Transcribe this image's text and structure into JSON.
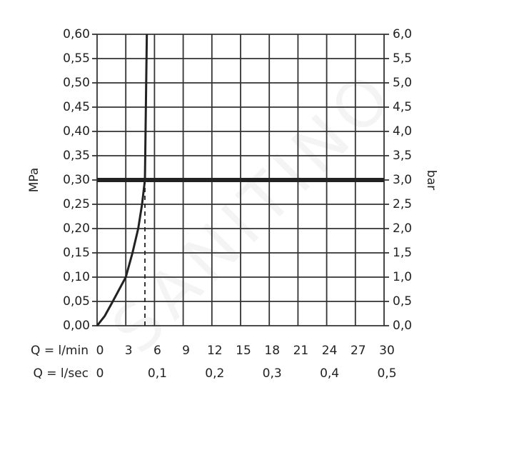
{
  "chart_data": {
    "type": "line",
    "ylabel": "MPa",
    "y2label": "bar",
    "xrow_label": "Q = l/min",
    "x2row_label": "Q = l/sec",
    "watermark": "SANITINO",
    "xlim": [
      0,
      30
    ],
    "xticks": [
      0,
      3,
      6,
      9,
      12,
      15,
      18,
      21,
      24,
      27,
      30
    ],
    "x2lim": [
      0,
      0.5
    ],
    "x2ticks": [
      0,
      {
        "value": 0.1,
        "label": "0,1"
      },
      {
        "value": 0.2,
        "label": "0,2"
      },
      {
        "value": 0.3,
        "label": "0,3"
      },
      {
        "value": 0.4,
        "label": "0,4"
      },
      {
        "value": 0.5,
        "label": "0,5"
      }
    ],
    "ylim": [
      0,
      0.6
    ],
    "yticks": [
      {
        "value": 0,
        "label": "0,00"
      },
      {
        "value": 0.05,
        "label": "0,05"
      },
      {
        "value": 0.1,
        "label": "0,10"
      },
      {
        "value": 0.15,
        "label": "0,15"
      },
      {
        "value": 0.2,
        "label": "0,20"
      },
      {
        "value": 0.25,
        "label": "0,25"
      },
      {
        "value": 0.3,
        "label": "0,30"
      },
      {
        "value": 0.35,
        "label": "0,35"
      },
      {
        "value": 0.4,
        "label": "0,40"
      },
      {
        "value": 0.45,
        "label": "0,45"
      },
      {
        "value": 0.5,
        "label": "0,50"
      },
      {
        "value": 0.55,
        "label": "0,55"
      },
      {
        "value": 0.6,
        "label": "0,60"
      }
    ],
    "y2lim": [
      0,
      6
    ],
    "y2ticks": [
      {
        "value": 0,
        "label": "0,0"
      },
      {
        "value": 0.5,
        "label": "0,5"
      },
      {
        "value": 1,
        "label": "1,0"
      },
      {
        "value": 1.5,
        "label": "1,5"
      },
      {
        "value": 2,
        "label": "2,0"
      },
      {
        "value": 2.5,
        "label": "2,5"
      },
      {
        "value": 3,
        "label": "3,0"
      },
      {
        "value": 3.5,
        "label": "3,5"
      },
      {
        "value": 4,
        "label": "4,0"
      },
      {
        "value": 4.5,
        "label": "4,5"
      },
      {
        "value": 5,
        "label": "5,0"
      },
      {
        "value": 5.5,
        "label": "5,5"
      },
      {
        "value": 6,
        "label": "6,0"
      }
    ],
    "grid": true,
    "reference_line": 0.3,
    "series": [
      {
        "color": "#222222",
        "dash": false,
        "x": [
          0,
          0.8,
          1.64,
          3,
          3.7,
          4.3,
          4.7,
          5.0,
          5.2
        ],
        "values": [
          0,
          0.02,
          0.05,
          0.1,
          0.15,
          0.2,
          0.25,
          0.3,
          0.6
        ]
      },
      {
        "color": "#222222",
        "dash": true,
        "x": [
          5.0,
          5.0
        ],
        "values": [
          0,
          0.3
        ]
      }
    ]
  }
}
